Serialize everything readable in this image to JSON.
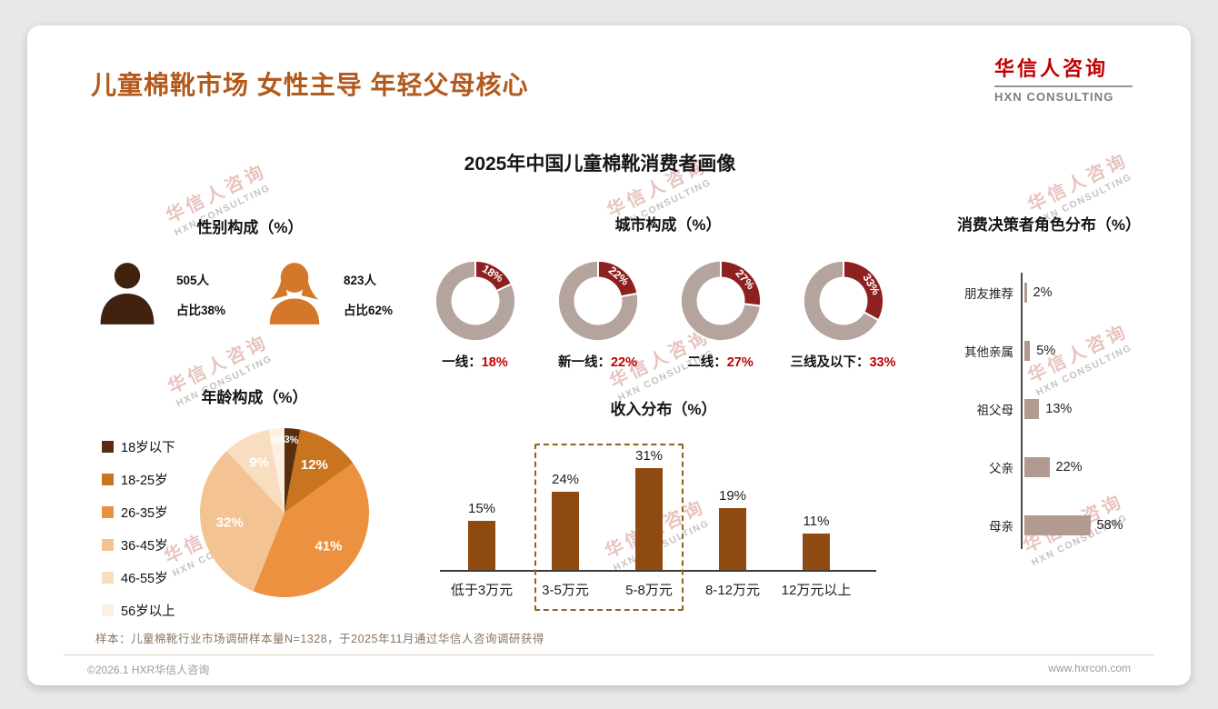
{
  "page": {
    "title": "儿童棉靴市场 女性主导 年轻父母核心",
    "main_chart_title": "2025年中国儿童棉靴消费者画像",
    "sample_note": "样本：儿童棉靴行业市场调研样本量N=1328，于2025年11月通过华信人咨询调研获得",
    "footer_left": "©2026.1 HXR华信人咨询",
    "footer_right": "www.hxrcon.com"
  },
  "logo": {
    "cn": "华信人咨询",
    "en": "HXN CONSULTING"
  },
  "watermark": {
    "cn": "华信人咨询",
    "en": "HXN CONSULTING"
  },
  "colors": {
    "title_brown": "#B2591B",
    "brand_red": "#C00000",
    "donut_highlight": "#8E2020",
    "donut_base": "#B5A49E",
    "income_bar": "#8E4A10",
    "decision_bar": "#B19A90"
  },
  "chart_data": [
    {
      "id": "gender",
      "type": "pictogram",
      "title": "性别构成（%）",
      "items": [
        {
          "gender": "male",
          "count_label": "505人",
          "share_label": "占比38%",
          "color": "#40230F"
        },
        {
          "gender": "female",
          "count_label": "823人",
          "share_label": "占比62%",
          "color": "#D4772B"
        }
      ]
    },
    {
      "id": "city",
      "type": "donut",
      "title": "城市构成（%）",
      "highlight_color": "#8E2020",
      "base_color": "#B5A49E",
      "items": [
        {
          "label": "一线：",
          "value": 18,
          "value_text": "18%"
        },
        {
          "label": "新一线：",
          "value": 22,
          "value_text": "22%"
        },
        {
          "label": "二线：",
          "value": 27,
          "value_text": "27%"
        },
        {
          "label": "三线及以下：",
          "value": 33,
          "value_text": "33%"
        }
      ]
    },
    {
      "id": "age",
      "type": "pie",
      "title": "年龄构成（%）",
      "categories": [
        "18岁以下",
        "18-25岁",
        "26-35岁",
        "36-45岁",
        "46-55岁",
        "56岁以上"
      ],
      "values": [
        3,
        12,
        41,
        32,
        9,
        3
      ],
      "colors": [
        "#5A2D0E",
        "#C9741F",
        "#EC9140",
        "#F4C394",
        "#F9DDC0",
        "#FCF0E2"
      ]
    },
    {
      "id": "income",
      "type": "bar",
      "title": "收入分布（%）",
      "categories": [
        "低于3万元",
        "3-5万元",
        "5-8万元",
        "8-12万元",
        "12万元以上"
      ],
      "values": [
        15,
        24,
        31,
        19,
        11
      ],
      "bar_color": "#8E4A10",
      "highlight_indexes": [
        1,
        2
      ]
    },
    {
      "id": "decision",
      "type": "horizontal-bar",
      "title": "消费决策者角色分布（%）",
      "categories": [
        "朋友推荐",
        "其他亲属",
        "祖父母",
        "父亲",
        "母亲"
      ],
      "values": [
        2,
        5,
        13,
        22,
        58
      ],
      "bar_color": "#B19A90"
    }
  ]
}
